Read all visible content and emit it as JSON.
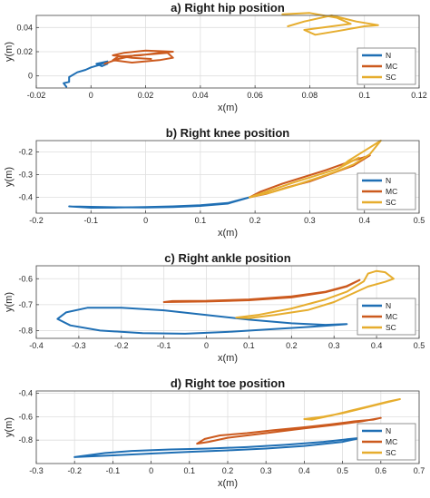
{
  "colors": {
    "N": "#1f6fb4",
    "MC": "#cc5a1e",
    "SC": "#e6ad2e",
    "grid": "#dedede",
    "axis": "#444444"
  },
  "chart_data": [
    {
      "type": "line",
      "title": "a) Right hip position",
      "xlabel": "x(m)",
      "ylabel": "y(m)",
      "xlim": [
        -0.02,
        0.12
      ],
      "ylim": [
        -0.01,
        0.05
      ],
      "xticks": [
        -0.02,
        0,
        0.02,
        0.04,
        0.06,
        0.08,
        0.1,
        0.12
      ],
      "xtick_labels": [
        "-0.02",
        "0",
        "0.02",
        "0.04",
        "0.06",
        "0.08",
        "0.1",
        "0.12"
      ],
      "yticks": [
        0,
        0.02,
        0.04
      ],
      "ytick_labels": [
        "0",
        "0.02",
        "0.04"
      ],
      "grid": true,
      "legend": "bottom-right",
      "series": [
        {
          "name": "N",
          "x": [
            -0.009,
            -0.01,
            -0.008,
            -0.008,
            -0.005,
            -0.002,
            0.0,
            0.003,
            0.005,
            0.006,
            0.004,
            0.002,
            0.006
          ],
          "y": [
            -0.009,
            -0.006,
            -0.005,
            -0.001,
            0.003,
            0.005,
            0.007,
            0.009,
            0.011,
            0.01,
            0.008,
            0.01,
            0.012
          ]
        },
        {
          "name": "MC",
          "x": [
            0.005,
            0.01,
            0.016,
            0.022,
            0.028,
            0.03,
            0.025,
            0.015,
            0.008,
            0.01,
            0.018,
            0.025,
            0.03,
            0.02,
            0.012,
            0.008,
            0.015,
            0.022
          ],
          "y": [
            0.01,
            0.014,
            0.017,
            0.018,
            0.019,
            0.015,
            0.013,
            0.011,
            0.013,
            0.016,
            0.017,
            0.019,
            0.02,
            0.021,
            0.019,
            0.017,
            0.015,
            0.014
          ]
        },
        {
          "name": "SC",
          "x": [
            0.07,
            0.08,
            0.09,
            0.095,
            0.085,
            0.078,
            0.082,
            0.09,
            0.1,
            0.105,
            0.097,
            0.088,
            0.078,
            0.072
          ],
          "y": [
            0.051,
            0.052,
            0.048,
            0.043,
            0.04,
            0.038,
            0.034,
            0.037,
            0.041,
            0.042,
            0.045,
            0.05,
            0.045,
            0.041
          ]
        }
      ]
    },
    {
      "type": "line",
      "title": "b) Right knee position",
      "xlabel": "x(m)",
      "ylabel": "y(m)",
      "xlim": [
        -0.2,
        0.5
      ],
      "ylim": [
        -0.47,
        -0.15
      ],
      "xticks": [
        -0.2,
        -0.1,
        0,
        0.1,
        0.2,
        0.3,
        0.4,
        0.5
      ],
      "xtick_labels": [
        "-0.2",
        "-0.1",
        "0",
        "0.1",
        "0.2",
        "0.3",
        "0.4",
        "0.5"
      ],
      "yticks": [
        -0.4,
        -0.3,
        -0.2
      ],
      "ytick_labels": [
        "-0.4",
        "-0.3",
        "-0.2"
      ],
      "grid": true,
      "legend": "bottom-right",
      "series": [
        {
          "name": "N",
          "x": [
            -0.14,
            -0.1,
            -0.05,
            0.0,
            0.05,
            0.1,
            0.15,
            0.19,
            0.15,
            0.1,
            0.05,
            0.0,
            -0.05,
            -0.1,
            -0.14
          ],
          "y": [
            -0.44,
            -0.442,
            -0.444,
            -0.445,
            -0.443,
            -0.438,
            -0.428,
            -0.4,
            -0.425,
            -0.435,
            -0.44,
            -0.443,
            -0.445,
            -0.446,
            -0.44
          ]
        },
        {
          "name": "MC",
          "x": [
            0.19,
            0.22,
            0.26,
            0.3,
            0.34,
            0.38,
            0.41,
            0.37,
            0.33,
            0.29,
            0.25,
            0.21,
            0.19
          ],
          "y": [
            -0.4,
            -0.385,
            -0.355,
            -0.33,
            -0.295,
            -0.26,
            -0.215,
            -0.245,
            -0.28,
            -0.31,
            -0.34,
            -0.375,
            -0.4
          ]
        },
        {
          "name": "SC",
          "x": [
            0.19,
            0.23,
            0.27,
            0.31,
            0.35,
            0.38,
            0.41,
            0.43,
            0.4,
            0.37,
            0.36,
            0.39,
            0.35,
            0.31,
            0.27,
            0.23,
            0.19
          ],
          "y": [
            -0.4,
            -0.378,
            -0.35,
            -0.318,
            -0.285,
            -0.255,
            -0.21,
            -0.15,
            -0.195,
            -0.24,
            -0.26,
            -0.225,
            -0.275,
            -0.305,
            -0.335,
            -0.368,
            -0.4
          ]
        }
      ]
    },
    {
      "type": "line",
      "title": "c) Right ankle position",
      "xlabel": "x(m)",
      "ylabel": "y(m)",
      "xlim": [
        -0.4,
        0.5
      ],
      "ylim": [
        -0.83,
        -0.55
      ],
      "xticks": [
        -0.4,
        -0.3,
        -0.2,
        -0.1,
        0,
        0.1,
        0.2,
        0.3,
        0.4,
        0.5
      ],
      "xtick_labels": [
        "-0.4",
        "-0.3",
        "-0.2",
        "-0.1",
        "0",
        "0.1",
        "0.2",
        "0.3",
        "0.4",
        "0.5"
      ],
      "yticks": [
        -0.8,
        -0.7,
        -0.6
      ],
      "ytick_labels": [
        "-0.8",
        "-0.7",
        "-0.6"
      ],
      "grid": true,
      "legend": "bottom-right",
      "series": [
        {
          "name": "N",
          "x": [
            0.33,
            0.25,
            0.15,
            0.05,
            -0.05,
            -0.15,
            -0.25,
            -0.32,
            -0.35,
            -0.33,
            -0.28,
            -0.2,
            -0.1,
            0.0,
            0.1,
            0.2,
            0.28,
            0.33
          ],
          "y": [
            -0.775,
            -0.785,
            -0.795,
            -0.805,
            -0.812,
            -0.81,
            -0.8,
            -0.78,
            -0.755,
            -0.73,
            -0.712,
            -0.712,
            -0.722,
            -0.74,
            -0.758,
            -0.772,
            -0.778,
            -0.775
          ]
        },
        {
          "name": "MC",
          "x": [
            -0.1,
            0.0,
            0.1,
            0.2,
            0.28,
            0.33,
            0.36,
            0.33,
            0.28,
            0.2,
            0.1,
            0.0,
            -0.08,
            -0.1
          ],
          "y": [
            -0.69,
            -0.688,
            -0.683,
            -0.672,
            -0.652,
            -0.63,
            -0.605,
            -0.628,
            -0.65,
            -0.668,
            -0.68,
            -0.685,
            -0.686,
            -0.69
          ]
        },
        {
          "name": "SC",
          "x": [
            0.07,
            0.12,
            0.2,
            0.28,
            0.33,
            0.37,
            0.38,
            0.4,
            0.42,
            0.44,
            0.42,
            0.38,
            0.34,
            0.3,
            0.24,
            0.16,
            0.1,
            0.07
          ],
          "y": [
            -0.75,
            -0.74,
            -0.715,
            -0.68,
            -0.65,
            -0.61,
            -0.58,
            -0.57,
            -0.575,
            -0.6,
            -0.612,
            -0.63,
            -0.66,
            -0.69,
            -0.72,
            -0.74,
            -0.752,
            -0.75
          ]
        }
      ]
    },
    {
      "type": "line",
      "title": "d) Right toe position",
      "xlabel": "x(m)",
      "ylabel": "y(m)",
      "xlim": [
        -0.3,
        0.7
      ],
      "ylim": [
        -1.0,
        -0.38
      ],
      "xticks": [
        -0.3,
        -0.2,
        -0.1,
        0,
        0.1,
        0.2,
        0.3,
        0.4,
        0.5,
        0.6,
        0.7
      ],
      "xtick_labels": [
        "-0.3",
        "-0.2",
        "-0.1",
        "0",
        "0.1",
        "0.2",
        "0.3",
        "0.4",
        "0.5",
        "0.6",
        "0.7"
      ],
      "yticks": [
        -0.8,
        -0.6,
        -0.4
      ],
      "ytick_labels": [
        "-0.8",
        "-0.6",
        "-0.4"
      ],
      "grid": true,
      "legend": "bottom-right",
      "series": [
        {
          "name": "N",
          "x": [
            -0.2,
            -0.1,
            0.0,
            0.1,
            0.2,
            0.3,
            0.4,
            0.5,
            0.55,
            0.52,
            0.45,
            0.35,
            0.25,
            0.15,
            0.05,
            -0.05,
            -0.12,
            -0.2
          ],
          "y": [
            -0.945,
            -0.93,
            -0.915,
            -0.9,
            -0.888,
            -0.872,
            -0.85,
            -0.815,
            -0.78,
            -0.79,
            -0.815,
            -0.84,
            -0.86,
            -0.872,
            -0.88,
            -0.892,
            -0.91,
            -0.945
          ]
        },
        {
          "name": "MC",
          "x": [
            0.12,
            0.14,
            0.18,
            0.25,
            0.32,
            0.4,
            0.47,
            0.53,
            0.58,
            0.6,
            0.55,
            0.48,
            0.4,
            0.3,
            0.2,
            0.15,
            0.12
          ],
          "y": [
            -0.83,
            -0.79,
            -0.76,
            -0.74,
            -0.715,
            -0.69,
            -0.665,
            -0.64,
            -0.625,
            -0.61,
            -0.64,
            -0.67,
            -0.7,
            -0.74,
            -0.78,
            -0.815,
            -0.83
          ]
        },
        {
          "name": "SC",
          "x": [
            0.4,
            0.45,
            0.5,
            0.55,
            0.6,
            0.65,
            0.62,
            0.57,
            0.52,
            0.47,
            0.42,
            0.4
          ],
          "y": [
            -0.62,
            -0.6,
            -0.57,
            -0.53,
            -0.49,
            -0.45,
            -0.47,
            -0.51,
            -0.55,
            -0.59,
            -0.625,
            -0.62
          ]
        }
      ]
    }
  ]
}
